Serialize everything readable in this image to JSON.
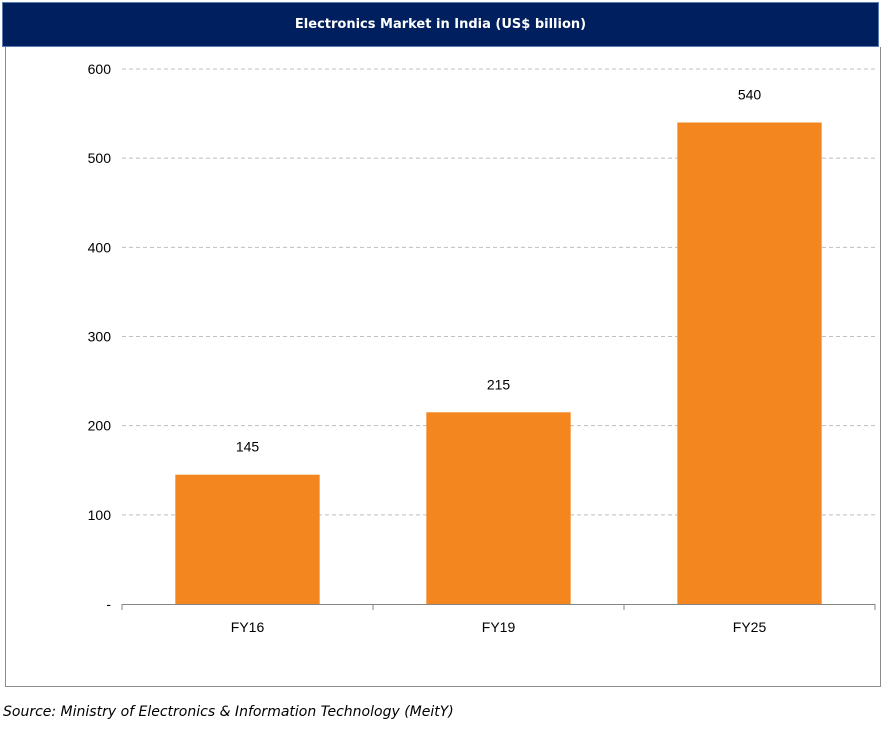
{
  "chart_data": {
    "type": "bar",
    "title": "Electronics Market in India (US$ billion)",
    "categories": [
      "FY16",
      "FY19",
      "FY25"
    ],
    "values": [
      145,
      215,
      540
    ],
    "data_labels": [
      "145",
      "215",
      "540"
    ],
    "xlabel": "",
    "ylabel": "",
    "ylim": [
      0,
      600
    ],
    "yticks": [
      0,
      100,
      200,
      300,
      400,
      500,
      600
    ],
    "ytick_labels": [
      "-",
      "100",
      "200",
      "300",
      "400",
      "500",
      "600"
    ],
    "grid": true,
    "legend": "none",
    "bar_color": "#f4861f"
  },
  "title_bar": {
    "background": "#001f5f"
  },
  "source": "Source: Ministry of Electronics & Information Technology (MeitY)"
}
